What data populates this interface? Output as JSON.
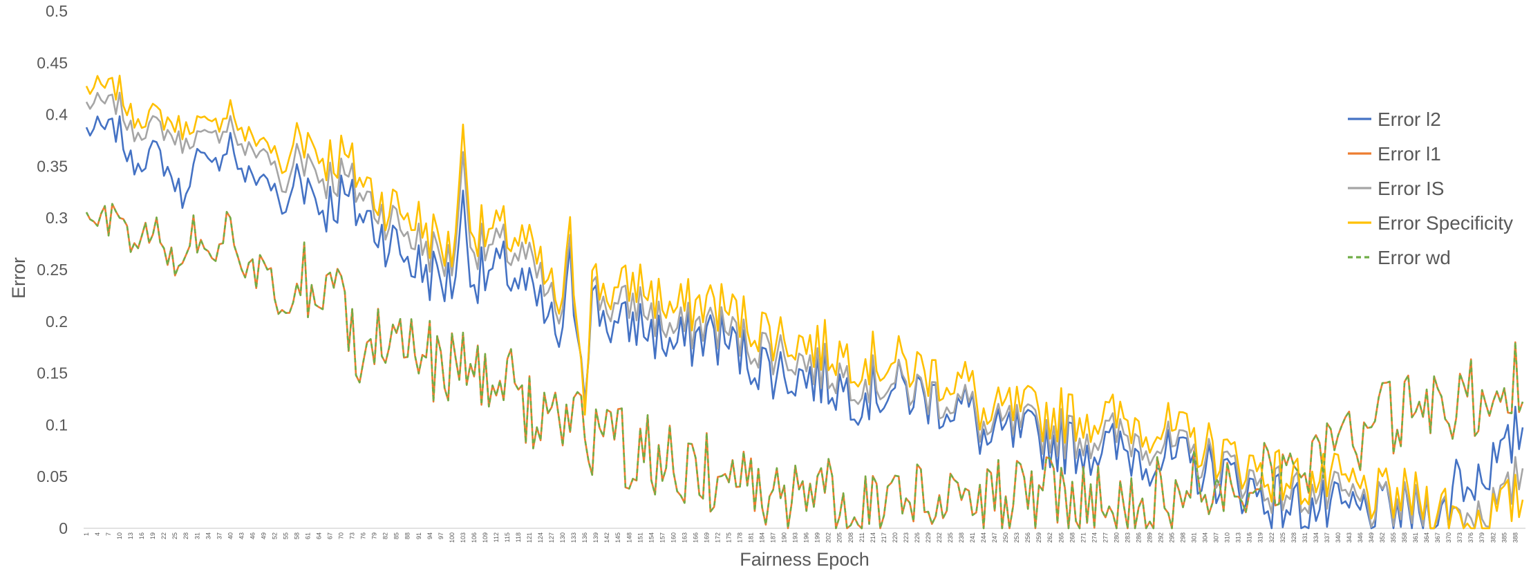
{
  "chart_data": {
    "type": "line",
    "title": "",
    "xlabel": "Fairness Epoch",
    "ylabel": "Error",
    "ylim": [
      0,
      0.5
    ],
    "y_ticks": [
      "0",
      "0.05",
      "0.1",
      "0.15",
      "0.2",
      "0.25",
      "0.3",
      "0.35",
      "0.4",
      "0.45",
      "0.5"
    ],
    "x": {
      "start": 1,
      "end": 390,
      "label_every": 3
    },
    "grid": false,
    "legend_position": "right",
    "colors": {
      "l2": "#4472C4",
      "l1": "#ED7D31",
      "is": "#A5A5A5",
      "spec": "#FFC000",
      "wd": "#70AD47",
      "axis": "#D9D9D9",
      "text": "#595959"
    },
    "anchors": {
      "l2": [
        [
          1,
          0.385
        ],
        [
          10,
          0.385
        ],
        [
          13,
          0.352
        ],
        [
          20,
          0.365
        ],
        [
          28,
          0.315
        ],
        [
          30,
          0.365
        ],
        [
          35,
          0.345
        ],
        [
          40,
          0.378
        ],
        [
          43,
          0.34
        ],
        [
          50,
          0.34
        ],
        [
          55,
          0.3
        ],
        [
          58,
          0.35
        ],
        [
          65,
          0.31
        ],
        [
          70,
          0.32
        ],
        [
          80,
          0.29
        ],
        [
          90,
          0.255
        ],
        [
          100,
          0.235
        ],
        [
          103,
          0.31
        ],
        [
          106,
          0.24
        ],
        [
          115,
          0.25
        ],
        [
          120,
          0.23
        ],
        [
          130,
          0.18
        ],
        [
          132,
          0.25
        ],
        [
          136,
          0.15
        ],
        [
          138,
          0.22
        ],
        [
          145,
          0.19
        ],
        [
          150,
          0.2
        ],
        [
          160,
          0.175
        ],
        [
          170,
          0.19
        ],
        [
          180,
          0.165
        ],
        [
          190,
          0.15
        ],
        [
          200,
          0.145
        ],
        [
          210,
          0.13
        ],
        [
          220,
          0.135
        ],
        [
          230,
          0.125
        ],
        [
          240,
          0.115
        ],
        [
          245,
          0.08
        ],
        [
          250,
          0.09
        ],
        [
          260,
          0.085
        ],
        [
          270,
          0.08
        ],
        [
          280,
          0.075
        ],
        [
          290,
          0.07
        ],
        [
          300,
          0.06
        ],
        [
          310,
          0.05
        ],
        [
          320,
          0.03
        ],
        [
          330,
          0.02
        ],
        [
          340,
          0.015
        ],
        [
          350,
          0.015
        ],
        [
          360,
          0.015
        ],
        [
          370,
          0.01
        ],
        [
          372,
          0.06
        ],
        [
          375,
          0.04
        ],
        [
          380,
          0.06
        ],
        [
          385,
          0.065
        ],
        [
          388,
          0.09
        ],
        [
          390,
          0.1
        ]
      ],
      "is": [
        [
          1,
          0.41
        ],
        [
          10,
          0.41
        ],
        [
          13,
          0.383
        ],
        [
          20,
          0.39
        ],
        [
          28,
          0.37
        ],
        [
          30,
          0.38
        ],
        [
          35,
          0.375
        ],
        [
          40,
          0.395
        ],
        [
          43,
          0.365
        ],
        [
          50,
          0.365
        ],
        [
          55,
          0.32
        ],
        [
          58,
          0.37
        ],
        [
          65,
          0.34
        ],
        [
          70,
          0.34
        ],
        [
          80,
          0.31
        ],
        [
          90,
          0.28
        ],
        [
          100,
          0.255
        ],
        [
          103,
          0.35
        ],
        [
          106,
          0.27
        ],
        [
          115,
          0.27
        ],
        [
          120,
          0.26
        ],
        [
          130,
          0.2
        ],
        [
          132,
          0.265
        ],
        [
          136,
          0.14
        ],
        [
          138,
          0.23
        ],
        [
          145,
          0.21
        ],
        [
          150,
          0.22
        ],
        [
          160,
          0.19
        ],
        [
          170,
          0.2
        ],
        [
          180,
          0.18
        ],
        [
          190,
          0.17
        ],
        [
          200,
          0.155
        ],
        [
          210,
          0.145
        ],
        [
          220,
          0.14
        ],
        [
          230,
          0.13
        ],
        [
          240,
          0.12
        ],
        [
          245,
          0.09
        ],
        [
          250,
          0.1
        ],
        [
          260,
          0.095
        ],
        [
          270,
          0.09
        ],
        [
          280,
          0.09
        ],
        [
          290,
          0.085
        ],
        [
          300,
          0.07
        ],
        [
          310,
          0.06
        ],
        [
          320,
          0.04
        ],
        [
          330,
          0.035
        ],
        [
          340,
          0.03
        ],
        [
          350,
          0.02
        ],
        [
          360,
          0.02
        ],
        [
          370,
          0.015
        ],
        [
          375,
          0.015
        ],
        [
          380,
          0.02
        ],
        [
          385,
          0.025
        ],
        [
          390,
          0.06
        ]
      ],
      "spec": [
        [
          1,
          0.425
        ],
        [
          10,
          0.425
        ],
        [
          13,
          0.398
        ],
        [
          20,
          0.4
        ],
        [
          28,
          0.385
        ],
        [
          30,
          0.395
        ],
        [
          35,
          0.385
        ],
        [
          40,
          0.41
        ],
        [
          43,
          0.38
        ],
        [
          50,
          0.375
        ],
        [
          55,
          0.34
        ],
        [
          58,
          0.39
        ],
        [
          65,
          0.36
        ],
        [
          70,
          0.36
        ],
        [
          80,
          0.32
        ],
        [
          90,
          0.3
        ],
        [
          100,
          0.265
        ],
        [
          103,
          0.375
        ],
        [
          106,
          0.285
        ],
        [
          115,
          0.285
        ],
        [
          120,
          0.275
        ],
        [
          130,
          0.21
        ],
        [
          132,
          0.28
        ],
        [
          136,
          0.135
        ],
        [
          138,
          0.24
        ],
        [
          145,
          0.225
        ],
        [
          150,
          0.24
        ],
        [
          160,
          0.21
        ],
        [
          170,
          0.22
        ],
        [
          180,
          0.2
        ],
        [
          190,
          0.185
        ],
        [
          200,
          0.175
        ],
        [
          210,
          0.165
        ],
        [
          220,
          0.16
        ],
        [
          230,
          0.15
        ],
        [
          240,
          0.14
        ],
        [
          245,
          0.1
        ],
        [
          250,
          0.115
        ],
        [
          260,
          0.11
        ],
        [
          270,
          0.11
        ],
        [
          280,
          0.105
        ],
        [
          290,
          0.1
        ],
        [
          300,
          0.085
        ],
        [
          310,
          0.07
        ],
        [
          320,
          0.055
        ],
        [
          330,
          0.045
        ],
        [
          340,
          0.045
        ],
        [
          350,
          0.03
        ],
        [
          360,
          0.03
        ],
        [
          370,
          0.02
        ],
        [
          375,
          0.005
        ],
        [
          380,
          0.01
        ],
        [
          385,
          0.02
        ],
        [
          390,
          0.03
        ]
      ],
      "wd": [
        [
          1,
          0.295
        ],
        [
          10,
          0.3
        ],
        [
          13,
          0.275
        ],
        [
          20,
          0.285
        ],
        [
          25,
          0.25
        ],
        [
          28,
          0.275
        ],
        [
          30,
          0.285
        ],
        [
          35,
          0.265
        ],
        [
          40,
          0.295
        ],
        [
          43,
          0.24
        ],
        [
          50,
          0.25
        ],
        [
          55,
          0.2
        ],
        [
          58,
          0.24
        ],
        [
          65,
          0.23
        ],
        [
          70,
          0.22
        ],
        [
          75,
          0.18
        ],
        [
          80,
          0.2
        ],
        [
          85,
          0.19
        ],
        [
          90,
          0.17
        ],
        [
          95,
          0.16
        ],
        [
          100,
          0.15
        ],
        [
          103,
          0.17
        ],
        [
          106,
          0.15
        ],
        [
          110,
          0.14
        ],
        [
          115,
          0.14
        ],
        [
          120,
          0.12
        ],
        [
          125,
          0.11
        ],
        [
          130,
          0.1
        ],
        [
          135,
          0.09
        ],
        [
          140,
          0.09
        ],
        [
          145,
          0.08
        ],
        [
          150,
          0.075
        ],
        [
          160,
          0.06
        ],
        [
          170,
          0.055
        ],
        [
          180,
          0.04
        ],
        [
          190,
          0.035
        ],
        [
          200,
          0.03
        ],
        [
          210,
          0.03
        ],
        [
          220,
          0.03
        ],
        [
          230,
          0.03
        ],
        [
          240,
          0.03
        ],
        [
          250,
          0.03
        ],
        [
          260,
          0.035
        ],
        [
          270,
          0.03
        ],
        [
          280,
          0.03
        ],
        [
          290,
          0.03
        ],
        [
          300,
          0.04
        ],
        [
          310,
          0.05
        ],
        [
          320,
          0.06
        ],
        [
          330,
          0.065
        ],
        [
          340,
          0.08
        ],
        [
          350,
          0.1
        ],
        [
          360,
          0.11
        ],
        [
          370,
          0.12
        ],
        [
          380,
          0.13
        ],
        [
          385,
          0.14
        ],
        [
          390,
          0.15
        ]
      ]
    },
    "series": [
      {
        "name": "Error l2",
        "key": "l2",
        "color": "#4472C4",
        "dash": false
      },
      {
        "name": "Error l1",
        "key": "wd",
        "color": "#ED7D31",
        "dash": false
      },
      {
        "name": "Error IS",
        "key": "is",
        "color": "#A5A5A5",
        "dash": false
      },
      {
        "name": "Error Specificity",
        "key": "spec",
        "color": "#FFC000",
        "dash": false
      },
      {
        "name": "Error wd",
        "key": "wd",
        "color": "#70AD47",
        "dash": true
      }
    ]
  }
}
